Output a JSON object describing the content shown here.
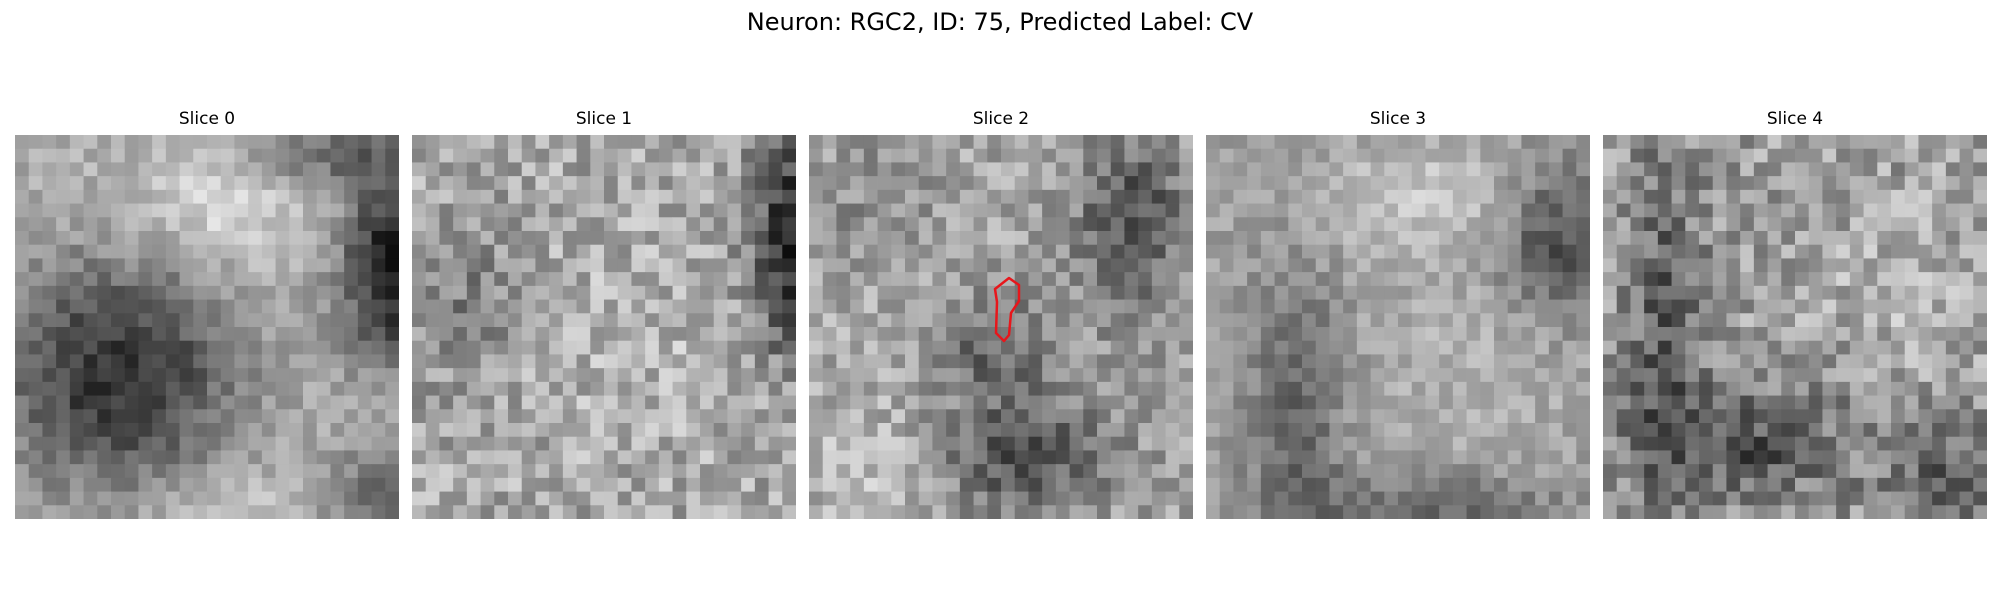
{
  "figure": {
    "title": "Neuron: RGC2, ID: 75, Predicted Label: CV"
  },
  "panels": [
    {
      "title": "Slice 0"
    },
    {
      "title": "Slice 1"
    },
    {
      "title": "Slice 2"
    },
    {
      "title": "Slice 3"
    },
    {
      "title": "Slice 4"
    }
  ],
  "overlay": {
    "segmentation_outline_color": "#e8161b"
  }
}
